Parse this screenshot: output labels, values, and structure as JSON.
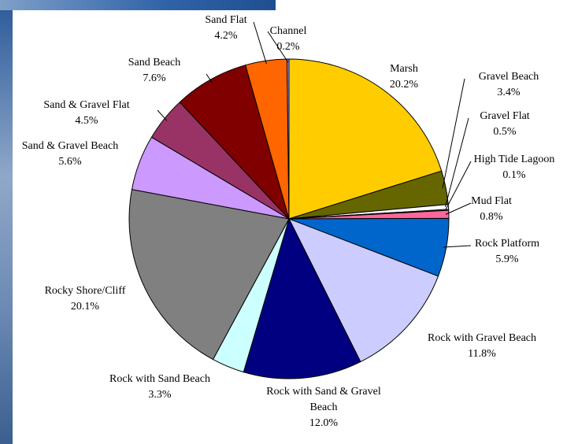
{
  "chart_data": {
    "type": "pie",
    "categories": [
      "Marsh",
      "Gravel Beach",
      "Gravel Flat",
      "High Tide Lagoon",
      "Mud Flat",
      "Rock Platform",
      "Rock with Gravel Beach",
      "Rock with Sand & Gravel Beach",
      "Rock with Sand Beach",
      "Rocky Shore/Cliff",
      "Sand & Gravel Beach",
      "Sand & Gravel Flat",
      "Sand Beach",
      "Sand Flat",
      "Channel"
    ],
    "values": [
      20.2,
      3.4,
      0.5,
      0.1,
      0.8,
      5.9,
      11.8,
      12.0,
      3.3,
      20.1,
      5.6,
      4.5,
      7.6,
      4.2,
      0.2
    ],
    "value_labels": [
      "20.2%",
      "3.4%",
      "0.5%",
      "0.1%",
      "0.8%",
      "5.9%",
      "11.8%",
      "12.0%",
      "3.3%",
      "20.1%",
      "5.6%",
      "4.5%",
      "7.6%",
      "4.2%",
      "0.2%"
    ],
    "colors": [
      "#FFCC00",
      "#666600",
      "#FFFFFF",
      "#CCFFCC",
      "#FF6699",
      "#0066CC",
      "#CCCCFF",
      "#000080",
      "#CCFFFF",
      "#808080",
      "#CC99FF",
      "#993366",
      "#800000",
      "#FF6600",
      "#9999FF"
    ]
  }
}
